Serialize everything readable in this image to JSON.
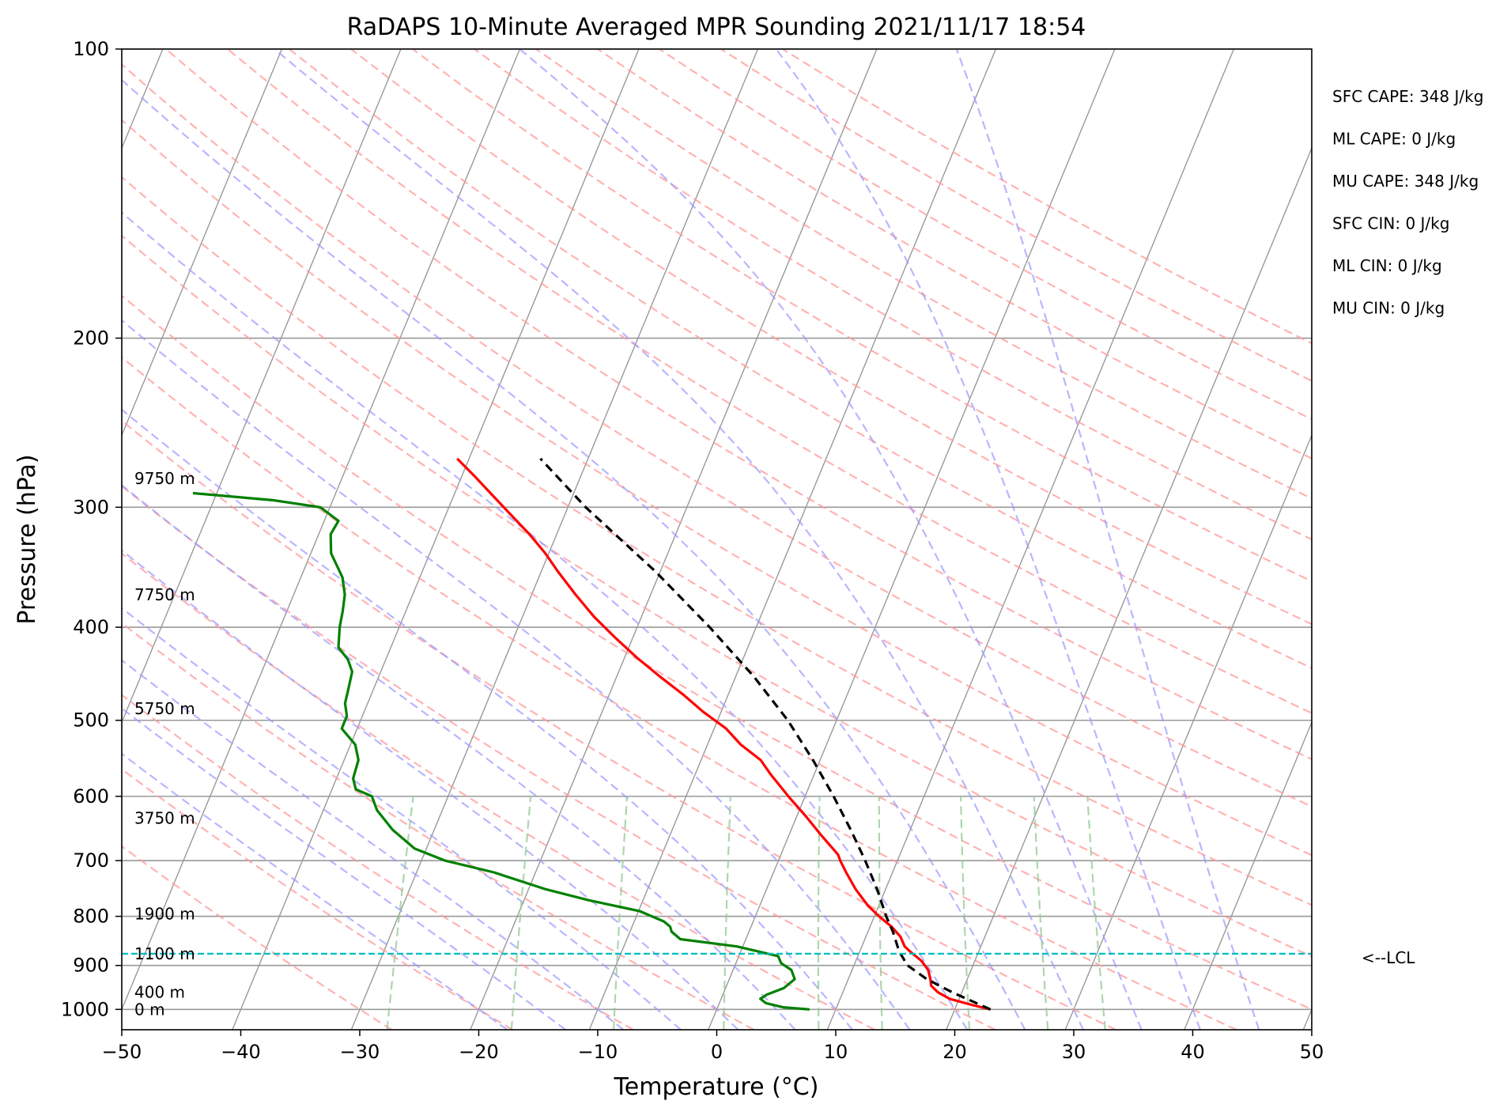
{
  "chart_data": {
    "type": "line",
    "subtype": "skew-t log-p sounding",
    "title": "RaDAPS 10-Minute Averaged MPR Sounding 2021/11/17 18:54",
    "xlabel": "Temperature (°C)",
    "ylabel": "Pressure (hPa)",
    "xlim": [
      -50,
      50
    ],
    "ylim": [
      1050,
      100
    ],
    "y_scale": "log",
    "grid": true,
    "x_ticks": [
      -50,
      -40,
      -30,
      -20,
      -10,
      0,
      10,
      20,
      30,
      40,
      50
    ],
    "x_tick_labels": [
      "−50",
      "−40",
      "−30",
      "−20",
      "−10",
      "0",
      "10",
      "20",
      "30",
      "40",
      "50"
    ],
    "y_ticks": [
      1000,
      900,
      800,
      700,
      600,
      500,
      400,
      300,
      200,
      100
    ],
    "y_tick_labels": [
      "1000",
      "900",
      "800",
      "700",
      "600",
      "500",
      "400",
      "300",
      "200",
      "100"
    ],
    "series": [
      {
        "key": "temperature",
        "color": "#ff0000",
        "points": [
          [
            1000,
            23.0
          ],
          [
            990,
            21.4
          ],
          [
            975,
            19.2
          ],
          [
            960,
            18.0
          ],
          [
            945,
            17.2
          ],
          [
            930,
            16.9
          ],
          [
            910,
            16.4
          ],
          [
            890,
            15.5
          ],
          [
            870,
            14.2
          ],
          [
            860,
            13.6
          ],
          [
            840,
            12.9
          ],
          [
            820,
            11.8
          ],
          [
            800,
            10.4
          ],
          [
            780,
            9.1
          ],
          [
            750,
            7.5
          ],
          [
            720,
            6.1
          ],
          [
            700,
            5.2
          ],
          [
            690,
            4.8
          ],
          [
            660,
            2.8
          ],
          [
            630,
            0.8
          ],
          [
            600,
            -1.4
          ],
          [
            570,
            -3.6
          ],
          [
            550,
            -5.0
          ],
          [
            530,
            -7.2
          ],
          [
            510,
            -9.0
          ],
          [
            490,
            -11.5
          ],
          [
            470,
            -13.8
          ],
          [
            450,
            -16.4
          ],
          [
            430,
            -19.0
          ],
          [
            410,
            -21.5
          ],
          [
            390,
            -24.0
          ],
          [
            370,
            -26.3
          ],
          [
            350,
            -28.6
          ],
          [
            335,
            -30.3
          ],
          [
            320,
            -32.3
          ],
          [
            305,
            -34.6
          ],
          [
            290,
            -37.0
          ],
          [
            278,
            -39.0
          ],
          [
            267,
            -41.0
          ]
        ]
      },
      {
        "key": "dewpoint",
        "color": "#008000",
        "points": [
          [
            1000,
            7.8
          ],
          [
            995,
            5.5
          ],
          [
            985,
            3.9
          ],
          [
            975,
            3.3
          ],
          [
            965,
            3.7
          ],
          [
            950,
            4.9
          ],
          [
            930,
            5.5
          ],
          [
            910,
            4.9
          ],
          [
            895,
            3.8
          ],
          [
            880,
            3.3
          ],
          [
            860,
            -0.5
          ],
          [
            845,
            -5.5
          ],
          [
            830,
            -6.5
          ],
          [
            820,
            -6.8
          ],
          [
            810,
            -7.5
          ],
          [
            790,
            -9.9
          ],
          [
            770,
            -14.5
          ],
          [
            750,
            -18.5
          ],
          [
            720,
            -23.5
          ],
          [
            700,
            -28.0
          ],
          [
            680,
            -31.0
          ],
          [
            650,
            -33.5
          ],
          [
            620,
            -35.5
          ],
          [
            600,
            -36.4
          ],
          [
            590,
            -38.0
          ],
          [
            575,
            -38.6
          ],
          [
            550,
            -38.8
          ],
          [
            530,
            -39.6
          ],
          [
            510,
            -41.3
          ],
          [
            495,
            -41.3
          ],
          [
            480,
            -41.9
          ],
          [
            465,
            -42.1
          ],
          [
            445,
            -42.4
          ],
          [
            432,
            -43.2
          ],
          [
            420,
            -44.4
          ],
          [
            400,
            -45.0
          ],
          [
            385,
            -45.3
          ],
          [
            370,
            -45.7
          ],
          [
            355,
            -46.5
          ],
          [
            335,
            -48.3
          ],
          [
            320,
            -49.0
          ],
          [
            310,
            -48.8
          ],
          [
            300,
            -50.8
          ],
          [
            295,
            -55.0
          ],
          [
            290,
            -62.0
          ]
        ]
      },
      {
        "key": "parcel",
        "color": "#000000",
        "points": [
          [
            1000,
            23.0
          ],
          [
            960,
            19.2
          ],
          [
            930,
            16.6
          ],
          [
            900,
            14.5
          ],
          [
            870,
            13.3
          ],
          [
            830,
            12.1
          ],
          [
            800,
            11.0
          ],
          [
            750,
            9.3
          ],
          [
            700,
            7.3
          ],
          [
            650,
            5.0
          ],
          [
            600,
            2.4
          ],
          [
            550,
            -0.6
          ],
          [
            500,
            -4.1
          ],
          [
            450,
            -8.5
          ],
          [
            400,
            -13.9
          ],
          [
            350,
            -20.4
          ],
          [
            300,
            -28.5
          ],
          [
            267,
            -34.0
          ]
        ]
      }
    ],
    "lcl": {
      "pressure": 875,
      "label": "<--LCL"
    },
    "height_labels": [
      {
        "pressure": 280,
        "text": "9750 m"
      },
      {
        "pressure": 370,
        "text": "7750 m"
      },
      {
        "pressure": 486,
        "text": "5750 m"
      },
      {
        "pressure": 632,
        "text": "3750 m"
      },
      {
        "pressure": 795,
        "text": "1900 m"
      },
      {
        "pressure": 875,
        "text": "1100 m"
      },
      {
        "pressure": 960,
        "text": "400 m"
      },
      {
        "pressure": 1000,
        "text": "0 m"
      }
    ],
    "stats": [
      "SFC CAPE: 348 J/kg",
      "ML CAPE: 0 J/kg",
      "MU CAPE: 348 J/kg",
      "SFC CIN: 0 J/kg",
      "ML CIN: 0 J/kg",
      "MU CIN: 0 J/kg"
    ],
    "colors": {
      "dry_adiabats": "#ff9999",
      "moist_adiabats": "#9999ff",
      "mixing_ratio": "#99cc99",
      "isotherms": "#999999",
      "isobars": "#999999",
      "lcl_line": "#00bfbf"
    }
  }
}
